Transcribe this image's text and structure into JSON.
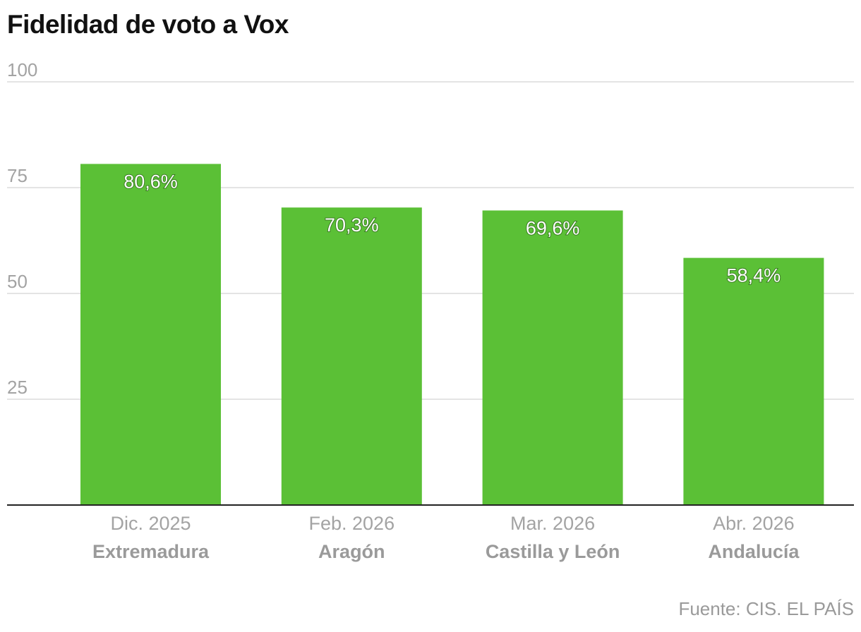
{
  "chart_data": {
    "type": "bar",
    "title": "Fidelidad de voto a Vox",
    "categories": [
      {
        "date": "Dic. 2025",
        "region": "Extremadura"
      },
      {
        "date": "Feb. 2026",
        "region": "Aragón"
      },
      {
        "date": "Mar. 2026",
        "region": "Castilla y León"
      },
      {
        "date": "Abr. 2026",
        "region": "Andalucía"
      }
    ],
    "values": [
      80.6,
      70.3,
      69.6,
      58.4
    ],
    "value_labels": [
      "80,6%",
      "70,3%",
      "69,6%",
      "58,4%"
    ],
    "yticks": [
      "25",
      "50",
      "75",
      "100"
    ],
    "ytick_values": [
      25,
      50,
      75,
      100
    ],
    "ylim": [
      0,
      100
    ],
    "grid": true,
    "bar_color": "#5bc036",
    "source": "Fuente: CIS. EL PAÍS"
  }
}
